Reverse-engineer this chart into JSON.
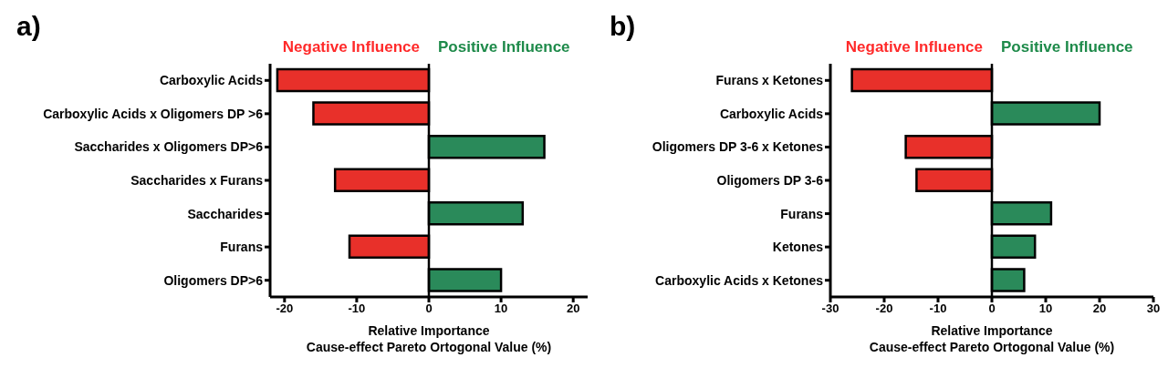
{
  "chart_data": [
    {
      "type": "bar",
      "orientation": "horizontal",
      "title": "a)",
      "categories": [
        "Carboxylic Acids",
        "Carboxylic Acids x Oligomers DP >6",
        "Saccharides x Oligomers DP>6",
        "Saccharides x Furans",
        "Saccharides",
        "Furans",
        "Oligomers DP>6"
      ],
      "values": [
        -21,
        -16,
        16,
        -13,
        13,
        -11,
        10
      ],
      "colors": [
        "#e8302a",
        "#e8302a",
        "#2a8a5a",
        "#e8302a",
        "#2a8a5a",
        "#e8302a",
        "#2a8a5a"
      ],
      "xlim": [
        -22,
        22
      ],
      "xticks": [
        -20,
        -10,
        0,
        10,
        20
      ],
      "xlabel": "Relative Importance\nCause-effect Pareto Ortogonal Value (%)",
      "annotations": [
        "Negative Influence",
        "Positive Influence"
      ],
      "ref_lines": [
        {
          "axis": "x",
          "value": 0
        }
      ],
      "grid": false,
      "legend": false
    },
    {
      "type": "bar",
      "orientation": "horizontal",
      "title": "b)",
      "categories": [
        "Furans x Ketones",
        "Carboxylic Acids",
        "Oligomers DP 3-6 x Ketones",
        "Oligomers DP 3-6",
        "Furans",
        "Ketones",
        "Carboxylic Acids x Ketones"
      ],
      "values": [
        -26,
        20,
        -16,
        -14,
        11,
        8,
        6
      ],
      "colors": [
        "#e8302a",
        "#2a8a5a",
        "#e8302a",
        "#e8302a",
        "#2a8a5a",
        "#2a8a5a",
        "#2a8a5a"
      ],
      "xlim": [
        -30,
        30
      ],
      "xticks": [
        -30,
        -20,
        -10,
        0,
        10,
        20,
        30
      ],
      "xlabel": "Relative Importance\nCause-effect Pareto Ortogonal Value (%)",
      "annotations": [
        "Negative Influence",
        "Positive Influence"
      ],
      "ref_lines": [
        {
          "axis": "x",
          "value": 0
        }
      ],
      "grid": false,
      "legend": false
    }
  ]
}
